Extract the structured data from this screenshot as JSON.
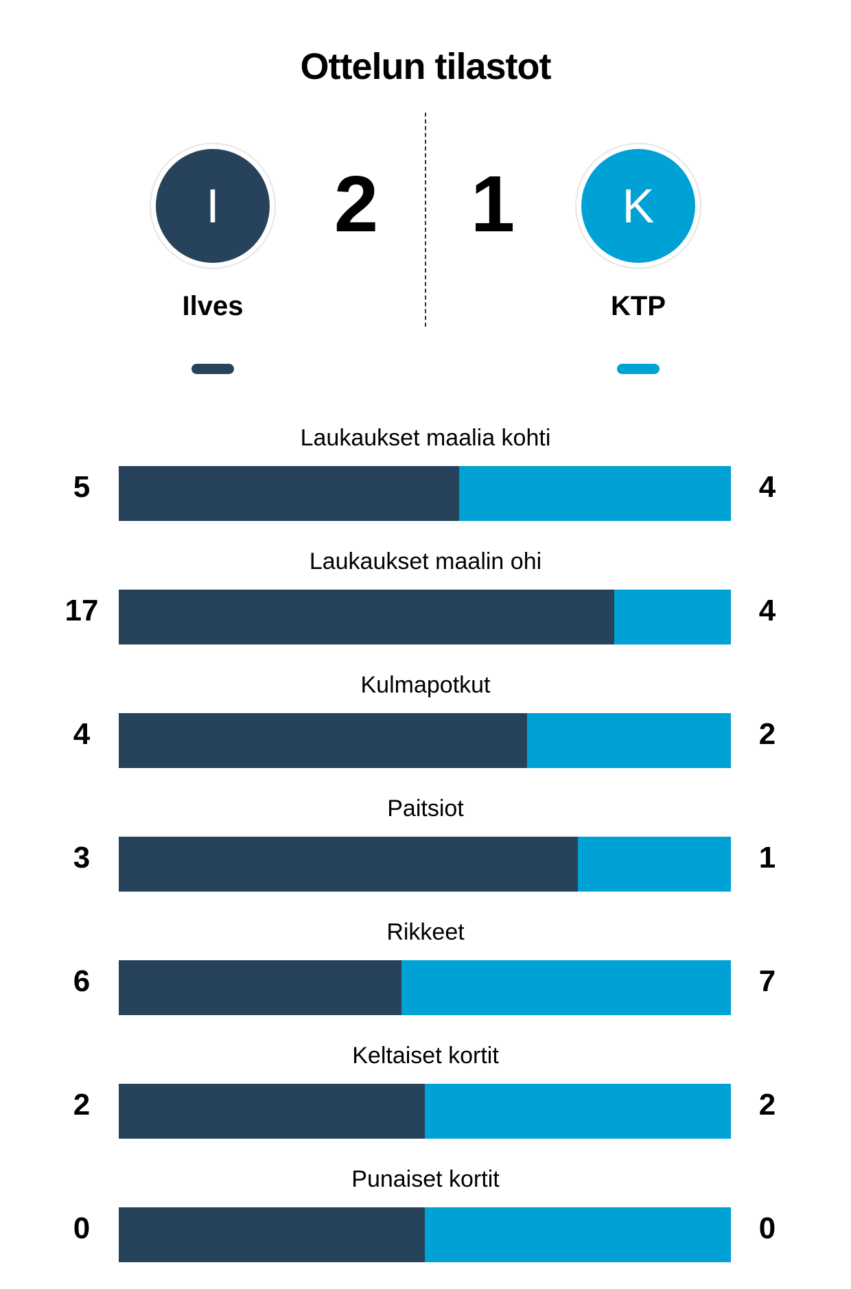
{
  "title": "Ottelun tilastot",
  "home": {
    "name": "Ilves",
    "initial": "I",
    "score": "2",
    "color": "#26435b"
  },
  "away": {
    "name": "KTP",
    "initial": "K",
    "score": "1",
    "color": "#00a1d5"
  },
  "stats": [
    {
      "label": "Laukaukset maalia kohti",
      "home": "5",
      "away": "4"
    },
    {
      "label": "Laukaukset maalin ohi",
      "home": "17",
      "away": "4"
    },
    {
      "label": "Kulmapotkut",
      "home": "4",
      "away": "2"
    },
    {
      "label": "Paitsiot",
      "home": "3",
      "away": "1"
    },
    {
      "label": "Rikkeet",
      "home": "6",
      "away": "7"
    },
    {
      "label": "Keltaiset kortit",
      "home": "2",
      "away": "2"
    },
    {
      "label": "Punaiset kortit",
      "home": "0",
      "away": "0"
    }
  ]
}
